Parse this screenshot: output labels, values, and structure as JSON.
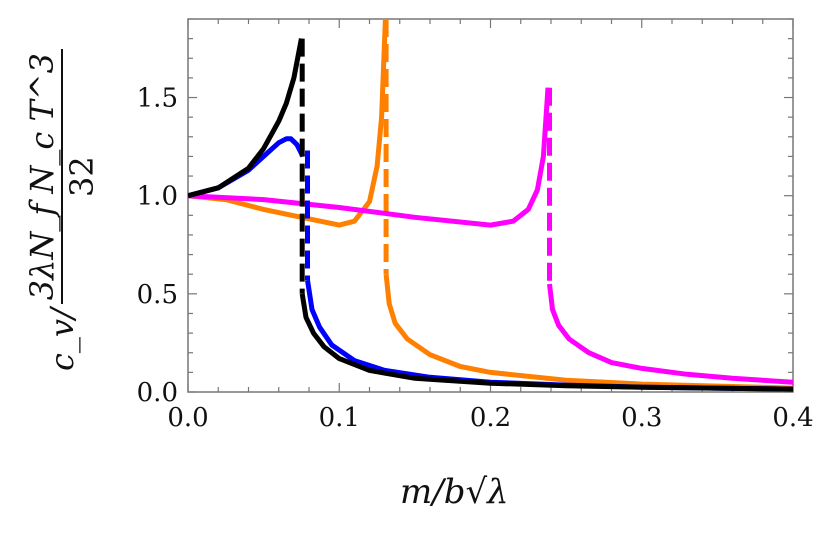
{
  "chart_data": {
    "type": "line",
    "xlabel": "m/b√λ",
    "ylabel": {
      "prefix": "c_v/",
      "numerator": "3λN_f N_c T^3",
      "denominator": "32"
    },
    "xlim": [
      0,
      0.4
    ],
    "ylim": [
      0,
      1.9
    ],
    "xticks": [
      "0.0",
      "0.1",
      "0.2",
      "0.3",
      "0.4"
    ],
    "yticks": [
      "0.0",
      "0.5",
      "1.0",
      "1.5"
    ],
    "grid": false,
    "series": [
      {
        "color": "#ff8000",
        "style": "solid",
        "points": [
          [
            0,
            1
          ],
          [
            0.025,
            0.98
          ],
          [
            0.05,
            0.93
          ],
          [
            0.075,
            0.89
          ],
          [
            0.1,
            0.85
          ],
          [
            0.11,
            0.87
          ],
          [
            0.12,
            0.97
          ],
          [
            0.125,
            1.15
          ],
          [
            0.128,
            1.4
          ],
          [
            0.1305,
            1.9
          ]
        ]
      },
      {
        "color": "#ff8000",
        "style": "dashed",
        "points": [
          [
            0.131,
            1.9
          ],
          [
            0.131,
            0.6
          ]
        ]
      },
      {
        "color": "#ff8000",
        "style": "solid",
        "points": [
          [
            0.131,
            0.6
          ],
          [
            0.133,
            0.45
          ],
          [
            0.137,
            0.35
          ],
          [
            0.145,
            0.27
          ],
          [
            0.16,
            0.19
          ],
          [
            0.18,
            0.13
          ],
          [
            0.2,
            0.1
          ],
          [
            0.25,
            0.06
          ],
          [
            0.3,
            0.04
          ],
          [
            0.35,
            0.03
          ],
          [
            0.4,
            0.02
          ]
        ]
      },
      {
        "color": "#ff00ff",
        "style": "solid",
        "points": [
          [
            0,
            1
          ],
          [
            0.05,
            0.98
          ],
          [
            0.1,
            0.94
          ],
          [
            0.15,
            0.89
          ],
          [
            0.2,
            0.85
          ],
          [
            0.215,
            0.87
          ],
          [
            0.225,
            0.93
          ],
          [
            0.231,
            1.03
          ],
          [
            0.235,
            1.2
          ],
          [
            0.238,
            1.55
          ]
        ]
      },
      {
        "color": "#ff00ff",
        "style": "dashed",
        "points": [
          [
            0.239,
            1.55
          ],
          [
            0.239,
            0.55
          ]
        ]
      },
      {
        "color": "#ff00ff",
        "style": "solid",
        "points": [
          [
            0.239,
            0.55
          ],
          [
            0.241,
            0.42
          ],
          [
            0.245,
            0.34
          ],
          [
            0.252,
            0.27
          ],
          [
            0.265,
            0.2
          ],
          [
            0.28,
            0.15
          ],
          [
            0.3,
            0.12
          ],
          [
            0.33,
            0.09
          ],
          [
            0.36,
            0.07
          ],
          [
            0.4,
            0.05
          ]
        ]
      },
      {
        "color": "#0000ff",
        "style": "solid",
        "points": [
          [
            0,
            1
          ],
          [
            0.02,
            1.04
          ],
          [
            0.04,
            1.13
          ],
          [
            0.05,
            1.2
          ],
          [
            0.06,
            1.27
          ],
          [
            0.065,
            1.29
          ],
          [
            0.068,
            1.29
          ],
          [
            0.072,
            1.26
          ],
          [
            0.076,
            1.2
          ]
        ]
      },
      {
        "color": "#0000ff",
        "style": "dashed",
        "points": [
          [
            0.079,
            1.23
          ],
          [
            0.079,
            0.57
          ]
        ]
      },
      {
        "color": "#0000ff",
        "style": "solid",
        "points": [
          [
            0.079,
            0.57
          ],
          [
            0.082,
            0.42
          ],
          [
            0.087,
            0.33
          ],
          [
            0.095,
            0.24
          ],
          [
            0.11,
            0.16
          ],
          [
            0.13,
            0.11
          ],
          [
            0.16,
            0.075
          ],
          [
            0.2,
            0.05
          ],
          [
            0.25,
            0.035
          ],
          [
            0.3,
            0.025
          ],
          [
            0.4,
            0.015
          ]
        ]
      },
      {
        "color": "#000000",
        "style": "solid",
        "points": [
          [
            0,
            1
          ],
          [
            0.02,
            1.04
          ],
          [
            0.04,
            1.14
          ],
          [
            0.05,
            1.24
          ],
          [
            0.06,
            1.38
          ],
          [
            0.065,
            1.47
          ],
          [
            0.07,
            1.6
          ],
          [
            0.075,
            1.8
          ]
        ]
      },
      {
        "color": "#000000",
        "style": "dashed",
        "points": [
          [
            0.0755,
            1.8
          ],
          [
            0.0755,
            0.5
          ]
        ]
      },
      {
        "color": "#000000",
        "style": "solid",
        "points": [
          [
            0.0755,
            0.5
          ],
          [
            0.078,
            0.38
          ],
          [
            0.083,
            0.3
          ],
          [
            0.09,
            0.23
          ],
          [
            0.1,
            0.17
          ],
          [
            0.12,
            0.11
          ],
          [
            0.15,
            0.07
          ],
          [
            0.2,
            0.045
          ],
          [
            0.25,
            0.032
          ],
          [
            0.3,
            0.024
          ],
          [
            0.4,
            0.015
          ]
        ]
      }
    ]
  }
}
